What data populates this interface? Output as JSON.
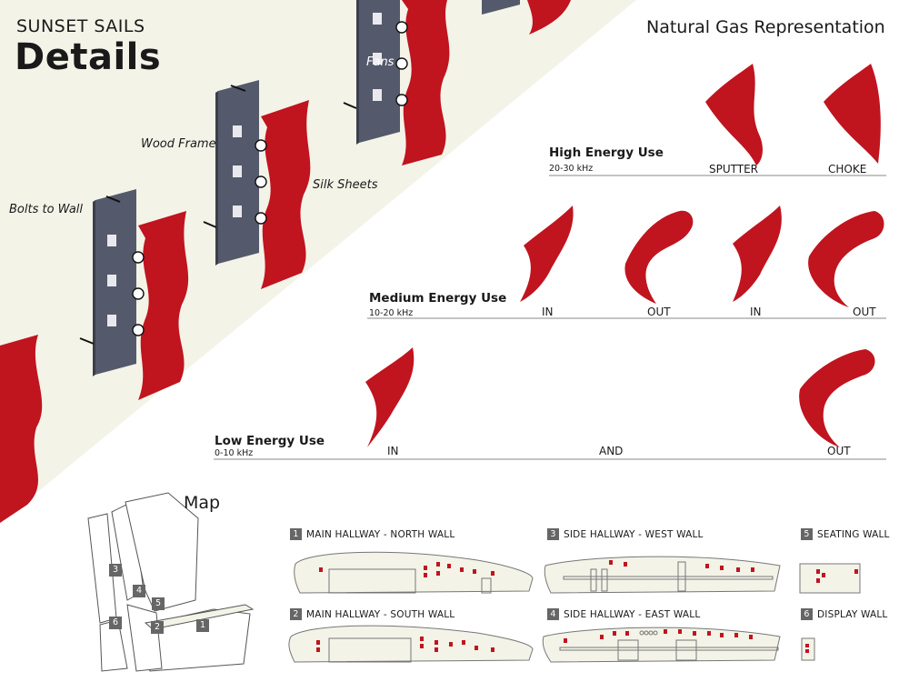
{
  "header": {
    "title_small": "SUNSET SAILS",
    "title_big": "Details"
  },
  "sail_labels": {
    "fans": "Fans",
    "wood_frame": "Wood Frame",
    "silk_sheets": "Silk Sheets",
    "bolts": "Bolts to Wall"
  },
  "gas": {
    "title": "Natural Gas Representation",
    "high": {
      "title": "High Energy Use",
      "range": "20-30 kHz",
      "captions": [
        "SPUTTER",
        "CHOKE"
      ]
    },
    "medium": {
      "title": "Medium Energy Use",
      "range": "10-20 kHz",
      "captions": [
        "IN",
        "OUT",
        "IN",
        "OUT"
      ]
    },
    "low": {
      "title": "Low Energy Use",
      "range": "0-10 kHz",
      "captions": [
        "IN",
        "AND",
        "OUT"
      ]
    }
  },
  "map": {
    "title": "Map",
    "markers": [
      "1",
      "2",
      "3",
      "4",
      "5",
      "6"
    ],
    "walls": [
      {
        "num": "1",
        "label": "MAIN HALLWAY - NORTH WALL"
      },
      {
        "num": "2",
        "label": "MAIN HALLWAY - SOUTH WALL"
      },
      {
        "num": "3",
        "label": "SIDE HALLWAY - WEST WALL"
      },
      {
        "num": "4",
        "label": "SIDE HALLWAY - EAST WALL"
      },
      {
        "num": "5",
        "label": "SEATING WALL"
      },
      {
        "num": "6",
        "label": "DISPLAY WALL"
      }
    ]
  },
  "colors": {
    "sail_red": "#c0141f",
    "frame_gray": "#545a6b",
    "band_cream": "#f3f3e8",
    "wall_fill": "#f3f3e8"
  }
}
